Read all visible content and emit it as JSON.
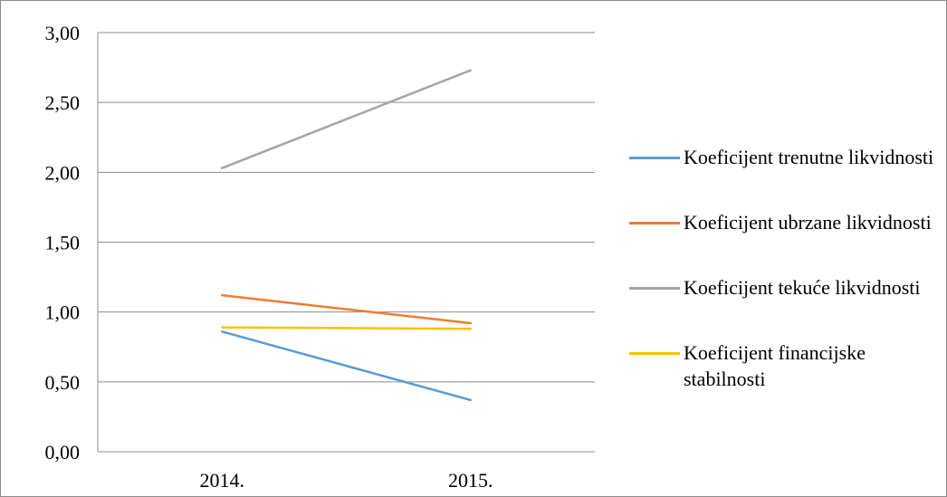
{
  "chart_data": {
    "type": "line",
    "categories": [
      "2014.",
      "2015."
    ],
    "ylim": [
      0,
      3
    ],
    "yticks": [
      "0,00",
      "0,50",
      "1,00",
      "1,50",
      "2,00",
      "2,50",
      "3,00"
    ],
    "grid": true,
    "legend_position": "right",
    "series": [
      {
        "name": "Koeficijent trenutne likvidnosti",
        "values": [
          0.86,
          0.37
        ],
        "color": "#5b9bd5"
      },
      {
        "name": "Koeficijent ubrzane likvidnosti",
        "values": [
          1.12,
          0.92
        ],
        "color": "#ed7d31"
      },
      {
        "name": "Koeficijent tekuće likvidnosti",
        "values": [
          2.03,
          2.73
        ],
        "color": "#a5a5a5"
      },
      {
        "name": "Koeficijent financijske stabilnosti",
        "values": [
          0.89,
          0.88
        ],
        "color": "#ffc000"
      }
    ]
  }
}
